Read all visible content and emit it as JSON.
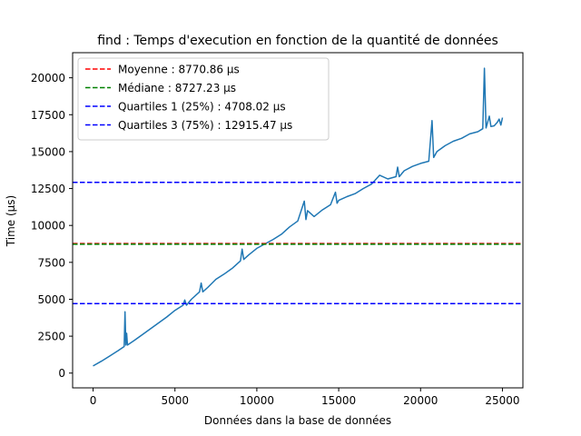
{
  "chart_data": {
    "type": "line",
    "title": "find : Temps d'execution en fonction de la quantité de données",
    "xlabel": "Données dans la base de données",
    "ylabel": "Time (µs)",
    "xlim": [
      -1250,
      26250
    ],
    "ylim": [
      -1000,
      21700
    ],
    "xticks": [
      0,
      5000,
      10000,
      15000,
      20000,
      25000
    ],
    "yticks": [
      0,
      2500,
      5000,
      7500,
      10000,
      12500,
      15000,
      17500,
      20000
    ],
    "grid": false,
    "legend_position": "top-left",
    "series": [
      {
        "color": "#1f77b4",
        "style": "solid",
        "x": [
          0,
          500,
          1000,
          1500,
          1900,
          1950,
          2000,
          2050,
          2100,
          2500,
          3000,
          3500,
          4000,
          4500,
          5000,
          5500,
          5600,
          5700,
          6000,
          6500,
          6600,
          6700,
          7000,
          7500,
          8000,
          8500,
          9000,
          9100,
          9200,
          9500,
          10000,
          10500,
          11000,
          11500,
          12000,
          12500,
          12900,
          13000,
          13100,
          13500,
          14000,
          14500,
          14800,
          14900,
          15000,
          15500,
          16000,
          16500,
          17000,
          17500,
          18000,
          18500,
          18600,
          18700,
          19000,
          19500,
          20000,
          20500,
          20700,
          20800,
          21000,
          21500,
          22000,
          22500,
          23000,
          23500,
          23800,
          23900,
          24000,
          24200,
          24300,
          24500,
          24700,
          24800,
          24900,
          25000
        ],
        "y": [
          480,
          800,
          1150,
          1500,
          1800,
          4150,
          1900,
          2700,
          1900,
          2200,
          2600,
          3000,
          3400,
          3800,
          4250,
          4600,
          4950,
          4600,
          5000,
          5500,
          6100,
          5500,
          5800,
          6350,
          6700,
          7100,
          7600,
          8400,
          7700,
          8000,
          8450,
          8750,
          9050,
          9400,
          9900,
          10300,
          11650,
          10400,
          11000,
          10600,
          11050,
          11400,
          12250,
          11500,
          11700,
          11950,
          12150,
          12500,
          12800,
          13400,
          13150,
          13300,
          13950,
          13300,
          13700,
          14000,
          14200,
          14350,
          17100,
          14600,
          15000,
          15400,
          15700,
          15900,
          16200,
          16350,
          16550,
          20650,
          16600,
          17400,
          16700,
          16750,
          17000,
          17200,
          16800,
          17300
        ]
      }
    ],
    "hlines": [
      {
        "name": "Moyenne : 8770.86 µs",
        "y": 8770.86,
        "color": "#ff0000",
        "style": "dashed"
      },
      {
        "name": "Médiane : 8727.23 µs",
        "y": 8727.23,
        "color": "#008000",
        "style": "dashed"
      },
      {
        "name": "Quartiles 1 (25%) : 4708.02 µs",
        "y": 4708.02,
        "color": "#0000ff",
        "style": "dashed"
      },
      {
        "name": "Quartiles 3 (75%) : 12915.47 µs",
        "y": 12915.47,
        "color": "#0000ff",
        "style": "dashed"
      }
    ]
  }
}
